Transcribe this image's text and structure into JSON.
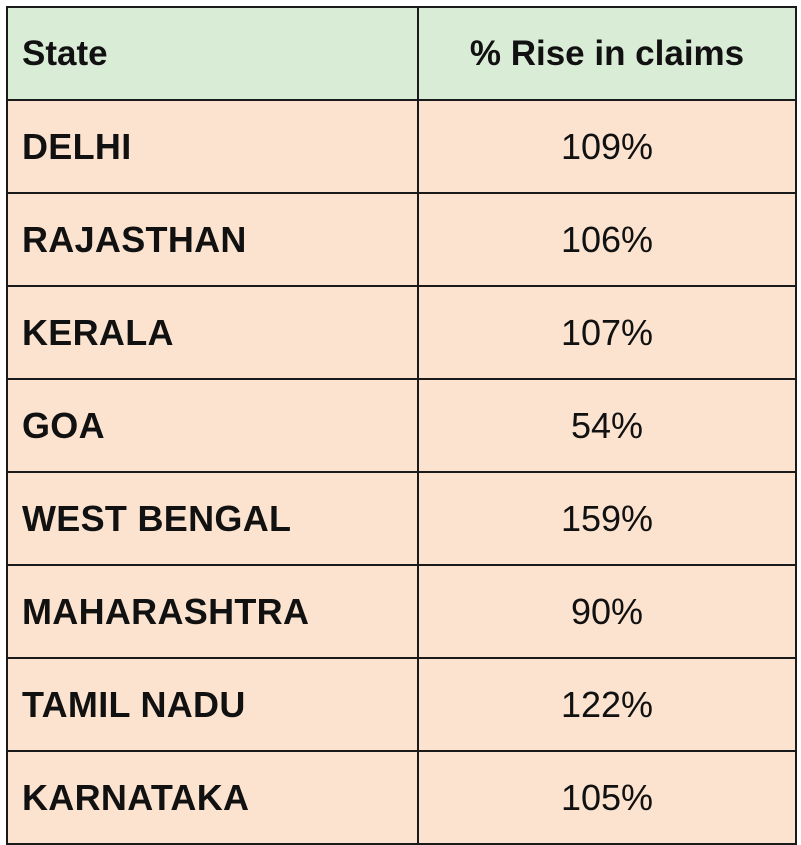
{
  "chart_data": {
    "type": "table",
    "columns": [
      "State",
      "% Rise in claims"
    ],
    "rows": [
      {
        "state": "DELHI",
        "rise": "109%",
        "value": 109
      },
      {
        "state": "RAJASTHAN",
        "rise": "106%",
        "value": 106
      },
      {
        "state": "KERALA",
        "rise": "107%",
        "value": 107
      },
      {
        "state": "GOA",
        "rise": "54%",
        "value": 54
      },
      {
        "state": "WEST BENGAL",
        "rise": "159%",
        "value": 159
      },
      {
        "state": "MAHARASHTRA",
        "rise": "90%",
        "value": 90
      },
      {
        "state": "TAMIL NADU",
        "rise": "122%",
        "value": 122
      },
      {
        "state": "KARNATAKA",
        "rise": "105%",
        "value": 105
      }
    ]
  },
  "colors": {
    "header_bg": "#d9ecd6",
    "row_bg": "#fbe3cf",
    "border": "#1a1a1a",
    "text": "#111111"
  }
}
